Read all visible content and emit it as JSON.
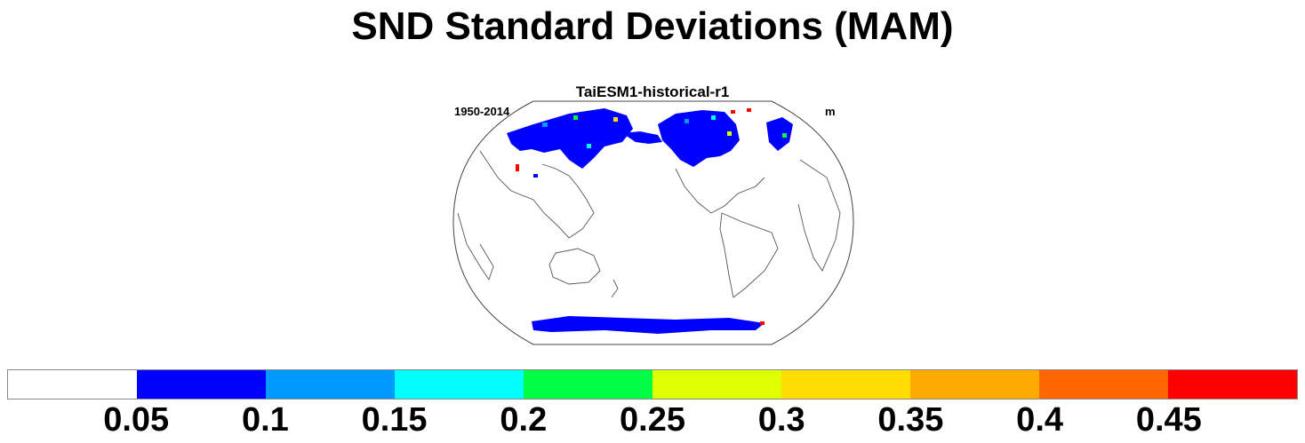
{
  "title": "SND Standard Deviations (MAM)",
  "panel": {
    "title": "TaiESM1-historical-r1",
    "left_label": "1950-2014",
    "right_label": "m"
  },
  "map": {
    "projection": "robinson",
    "center_longitude": "180",
    "snow_regions": [
      "Northern Eurasia",
      "Northern North America",
      "Antarctic coast"
    ]
  },
  "colorbar": {
    "colors": [
      "#ffffff",
      "#0000ff",
      "#0099ff",
      "#00ffff",
      "#00ff44",
      "#ddff00",
      "#ffdd00",
      "#ffaa00",
      "#ff6600",
      "#ff0000"
    ],
    "labels": [
      "0.05",
      "0.1",
      "0.15",
      "0.2",
      "0.25",
      "0.3",
      "0.35",
      "0.4",
      "0.45"
    ]
  }
}
